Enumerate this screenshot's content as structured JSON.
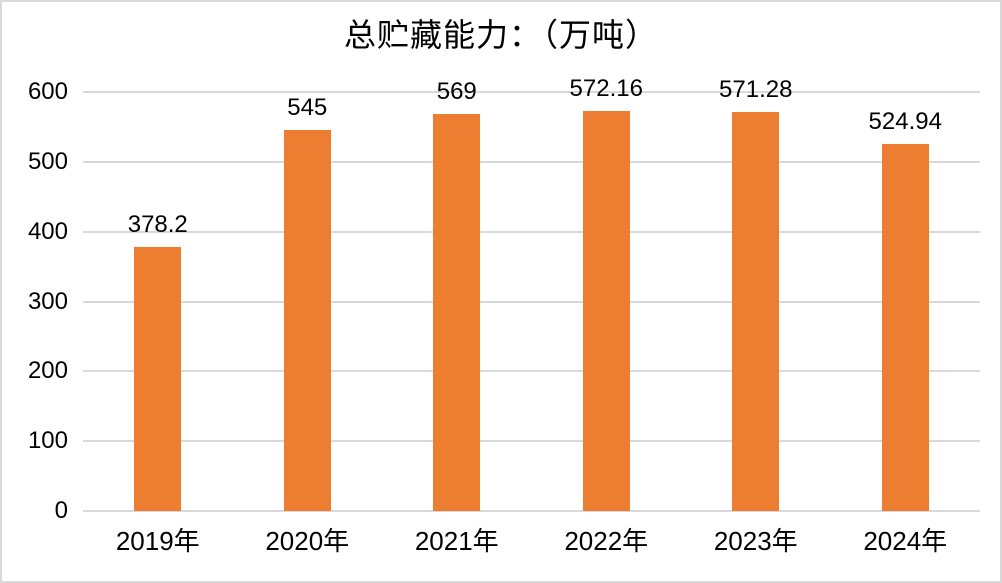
{
  "window": {
    "background": "#ffffff",
    "border_color": "#d9d9d9"
  },
  "chart_data": {
    "type": "bar",
    "title": "总贮藏能力：（万吨）",
    "categories": [
      "2019年",
      "2020年",
      "2021年",
      "2022年",
      "2023年",
      "2024年"
    ],
    "values": [
      378.2,
      545,
      569,
      572.16,
      571.28,
      524.94
    ],
    "data_labels": [
      "378.2",
      "545",
      "569",
      "572.16",
      "571.28",
      "524.94"
    ],
    "xlabel": "",
    "ylabel": "",
    "y_ticks": [
      0,
      100,
      200,
      300,
      400,
      500,
      600
    ],
    "ylim": [
      0,
      600
    ],
    "grid": true,
    "legend": "none",
    "bar_color": "#ED7D31",
    "gridline_color": "#D9D9D9",
    "axis_line_color": "#D9D9D9",
    "text_color": "#000000"
  }
}
